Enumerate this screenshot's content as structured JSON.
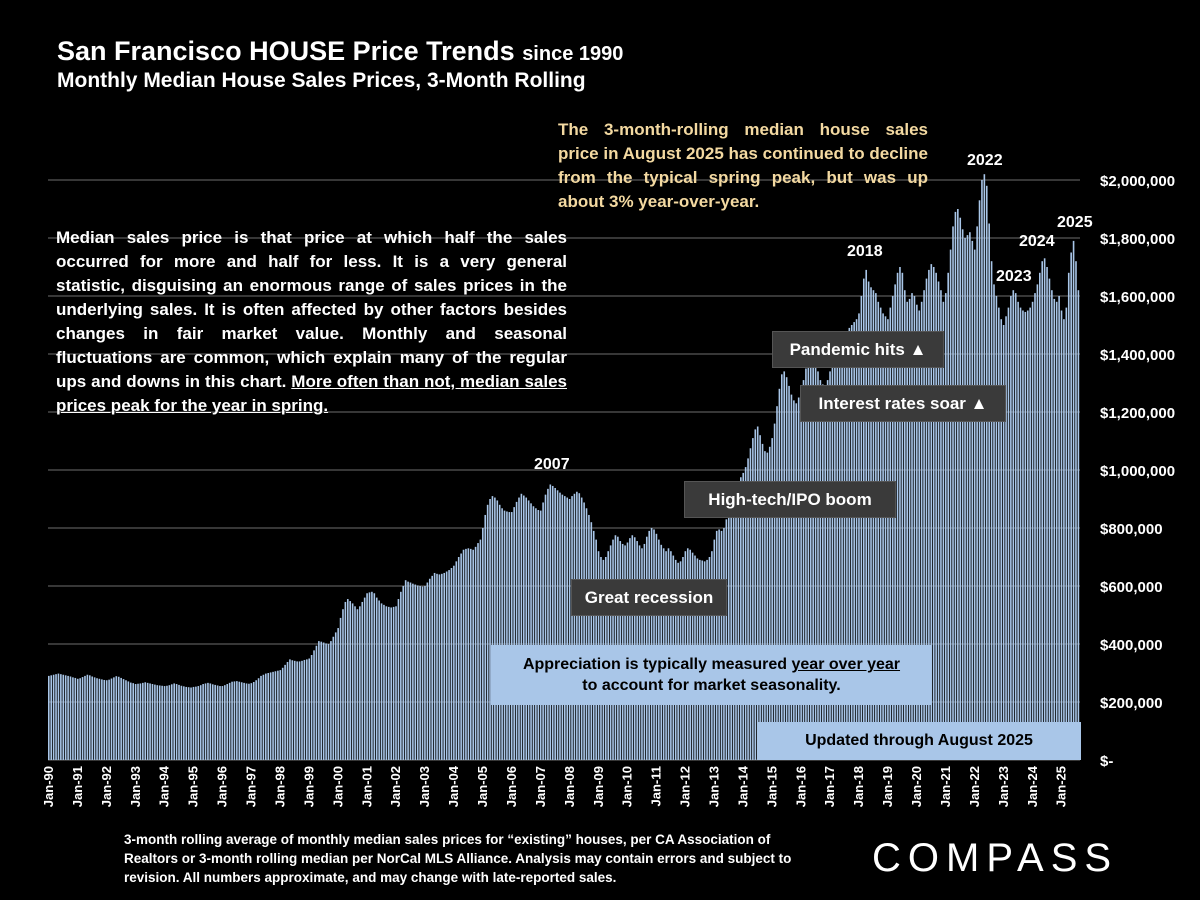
{
  "title": "San Francisco HOUSE Price Trends",
  "title_since": "since 1990",
  "subtitle": "Monthly Median House Sales Prices, 3-Month Rolling",
  "note_yellow": "The 3-month-rolling median house sales price in August 2025 has continued to decline from the typical spring peak, but was up about 3% year-over-year.",
  "note_left_plain": "Median sales price is that price at which half the sales occurred for more and half for less. It is a very general statistic, disguising an enormous range of sales prices in the underlying sales. It is often affected by other factors besides changes in fair market value. Monthly and seasonal fluctuations are common, which explain many of the regular ups and downs in this chart.",
  "note_left_underlined": "More often than not, median sales prices peak for the year in spring.",
  "annotations": {
    "y2007": "2007",
    "y2018": "2018",
    "y2022": "2022",
    "y2023": "2023",
    "y2024": "2024",
    "y2025": "2025",
    "pandemic": "Pandemic hits ▲",
    "interest": "Interest rates soar ▲",
    "hightech": "High-tech/IPO boom",
    "recession": "Great recession",
    "appreciation_1": "Appreciation is typically measured",
    "appreciation_u": "year over year",
    "appreciation_2": "to account for market seasonality.",
    "updated": "Updated through August 2025"
  },
  "footnote": "3-month rolling average of monthly median sales prices for “existing” houses, per CA Association of Realtors or 3-month rolling median per NorCal MLS Alliance. Analysis may contain errors and subject to revision. All numbers approximate, and may change with late-reported sales.",
  "logo": "COMPASS",
  "colors": {
    "bar": "#a9c6e8",
    "grid": "#6e6e6e",
    "yellow": "#f3d9a1"
  },
  "chart_data": {
    "type": "bar",
    "title": "San Francisco HOUSE Price Trends since 1990",
    "subtitle": "Monthly Median House Sales Prices, 3-Month Rolling",
    "x_start": "Jan-90",
    "x_end": "Aug-25",
    "frequency": "monthly",
    "ylim": [
      0,
      2000000
    ],
    "yticks": [
      0,
      200000,
      400000,
      600000,
      800000,
      1000000,
      1200000,
      1400000,
      1600000,
      1800000,
      2000000
    ],
    "ytick_labels": [
      "$-",
      "$200,000",
      "$400,000",
      "$600,000",
      "$800,000",
      "$1,000,000",
      "$1,200,000",
      "$1,400,000",
      "$1,600,000",
      "$1,800,000",
      "$2,000,000"
    ],
    "xtick_labels": [
      "Jan-90",
      "Jan-91",
      "Jan-92",
      "Jan-93",
      "Jan-94",
      "Jan-95",
      "Jan-96",
      "Jan-97",
      "Jan-98",
      "Jan-99",
      "Jan-00",
      "Jan-01",
      "Jan-02",
      "Jan-03",
      "Jan-04",
      "Jan-05",
      "Jan-06",
      "Jan-07",
      "Jan-08",
      "Jan-09",
      "Jan-10",
      "Jan-11",
      "Jan-12",
      "Jan-13",
      "Jan-14",
      "Jan-15",
      "Jan-16",
      "Jan-17",
      "Jan-18",
      "Jan-19",
      "Jan-20",
      "Jan-21",
      "Jan-22",
      "Jan-23",
      "Jan-24",
      "Jan-25"
    ],
    "grid": true,
    "values": [
      290000,
      292000,
      294000,
      296000,
      298000,
      296000,
      294000,
      292000,
      290000,
      288000,
      285000,
      283000,
      280000,
      282000,
      286000,
      290000,
      294000,
      292000,
      288000,
      285000,
      282000,
      280000,
      278000,
      276000,
      275000,
      277000,
      281000,
      285000,
      289000,
      287000,
      283000,
      279000,
      275000,
      271000,
      267000,
      265000,
      262000,
      263000,
      264000,
      266000,
      268000,
      266000,
      264000,
      262000,
      260000,
      258000,
      257000,
      256000,
      255000,
      256000,
      258000,
      261000,
      264000,
      262000,
      259000,
      256000,
      254000,
      252000,
      251000,
      250000,
      252000,
      253000,
      255000,
      258000,
      262000,
      264000,
      266000,
      264000,
      261000,
      259000,
      257000,
      255000,
      255000,
      258000,
      262000,
      266000,
      270000,
      271000,
      272000,
      270000,
      268000,
      266000,
      264000,
      263000,
      265000,
      269000,
      275000,
      282000,
      290000,
      294000,
      298000,
      300000,
      302000,
      304000,
      306000,
      308000,
      310000,
      318000,
      328000,
      338000,
      347000,
      344000,
      342000,
      340000,
      340000,
      342000,
      345000,
      347000,
      350000,
      362000,
      378000,
      394000,
      410000,
      408000,
      405000,
      402000,
      400000,
      410000,
      425000,
      440000,
      455000,
      490000,
      520000,
      545000,
      555000,
      548000,
      540000,
      530000,
      520000,
      530000,
      545000,
      560000,
      575000,
      578000,
      580000,
      575000,
      560000,
      550000,
      540000,
      535000,
      530000,
      528000,
      526000,
      528000,
      530000,
      555000,
      580000,
      600000,
      620000,
      615000,
      612000,
      608000,
      605000,
      602000,
      600000,
      598000,
      600000,
      612000,
      625000,
      635000,
      645000,
      642000,
      640000,
      642000,
      645000,
      650000,
      655000,
      662000,
      670000,
      685000,
      700000,
      712000,
      725000,
      728000,
      730000,
      728000,
      725000,
      735000,
      748000,
      760000,
      800000,
      845000,
      880000,
      900000,
      910000,
      905000,
      895000,
      880000,
      868000,
      860000,
      857000,
      855000,
      855000,
      872000,
      890000,
      905000,
      918000,
      912000,
      905000,
      895000,
      885000,
      875000,
      868000,
      862000,
      860000,
      888000,
      915000,
      935000,
      950000,
      945000,
      938000,
      930000,
      922000,
      915000,
      910000,
      905000,
      900000,
      910000,
      918000,
      925000,
      920000,
      905000,
      888000,
      868000,
      845000,
      820000,
      790000,
      760000,
      720000,
      700000,
      690000,
      700000,
      720000,
      740000,
      760000,
      775000,
      770000,
      755000,
      745000,
      740000,
      750000,
      765000,
      775000,
      768000,
      755000,
      740000,
      730000,
      745000,
      770000,
      790000,
      800000,
      795000,
      780000,
      760000,
      742000,
      730000,
      720000,
      730000,
      720000,
      705000,
      690000,
      680000,
      685000,
      700000,
      720000,
      730000,
      725000,
      715000,
      705000,
      695000,
      690000,
      688000,
      685000,
      690000,
      700000,
      720000,
      760000,
      790000,
      795000,
      790000,
      800000,
      830000,
      860000,
      880000,
      900000,
      925000,
      950000,
      975000,
      990000,
      1010000,
      1040000,
      1075000,
      1110000,
      1140000,
      1150000,
      1120000,
      1090000,
      1065000,
      1060000,
      1080000,
      1110000,
      1160000,
      1220000,
      1280000,
      1330000,
      1340000,
      1320000,
      1290000,
      1260000,
      1240000,
      1230000,
      1250000,
      1270000,
      1310000,
      1350000,
      1380000,
      1400000,
      1390000,
      1370000,
      1340000,
      1310000,
      1295000,
      1290000,
      1310000,
      1340000,
      1380000,
      1410000,
      1430000,
      1450000,
      1460000,
      1470000,
      1475000,
      1490000,
      1500000,
      1510000,
      1520000,
      1540000,
      1600000,
      1660000,
      1690000,
      1650000,
      1630000,
      1620000,
      1610000,
      1580000,
      1560000,
      1540000,
      1530000,
      1520000,
      1560000,
      1600000,
      1640000,
      1680000,
      1700000,
      1680000,
      1620000,
      1580000,
      1590000,
      1610000,
      1600000,
      1570000,
      1550000,
      1580000,
      1620000,
      1660000,
      1690000,
      1710000,
      1700000,
      1680000,
      1650000,
      1620000,
      1580000,
      1610000,
      1680000,
      1760000,
      1840000,
      1890000,
      1900000,
      1870000,
      1830000,
      1800000,
      1810000,
      1820000,
      1790000,
      1760000,
      1840000,
      1930000,
      2000000,
      2020000,
      1980000,
      1850000,
      1720000,
      1640000,
      1600000,
      1560000,
      1520000,
      1500000,
      1530000,
      1560000,
      1600000,
      1620000,
      1610000,
      1580000,
      1560000,
      1550000,
      1545000,
      1550000,
      1560000,
      1580000,
      1610000,
      1640000,
      1680000,
      1720000,
      1730000,
      1700000,
      1660000,
      1620000,
      1590000,
      1580000,
      1600000,
      1550000,
      1520000,
      1560000,
      1680000,
      1750000,
      1790000,
      1720000,
      1620000
    ]
  }
}
